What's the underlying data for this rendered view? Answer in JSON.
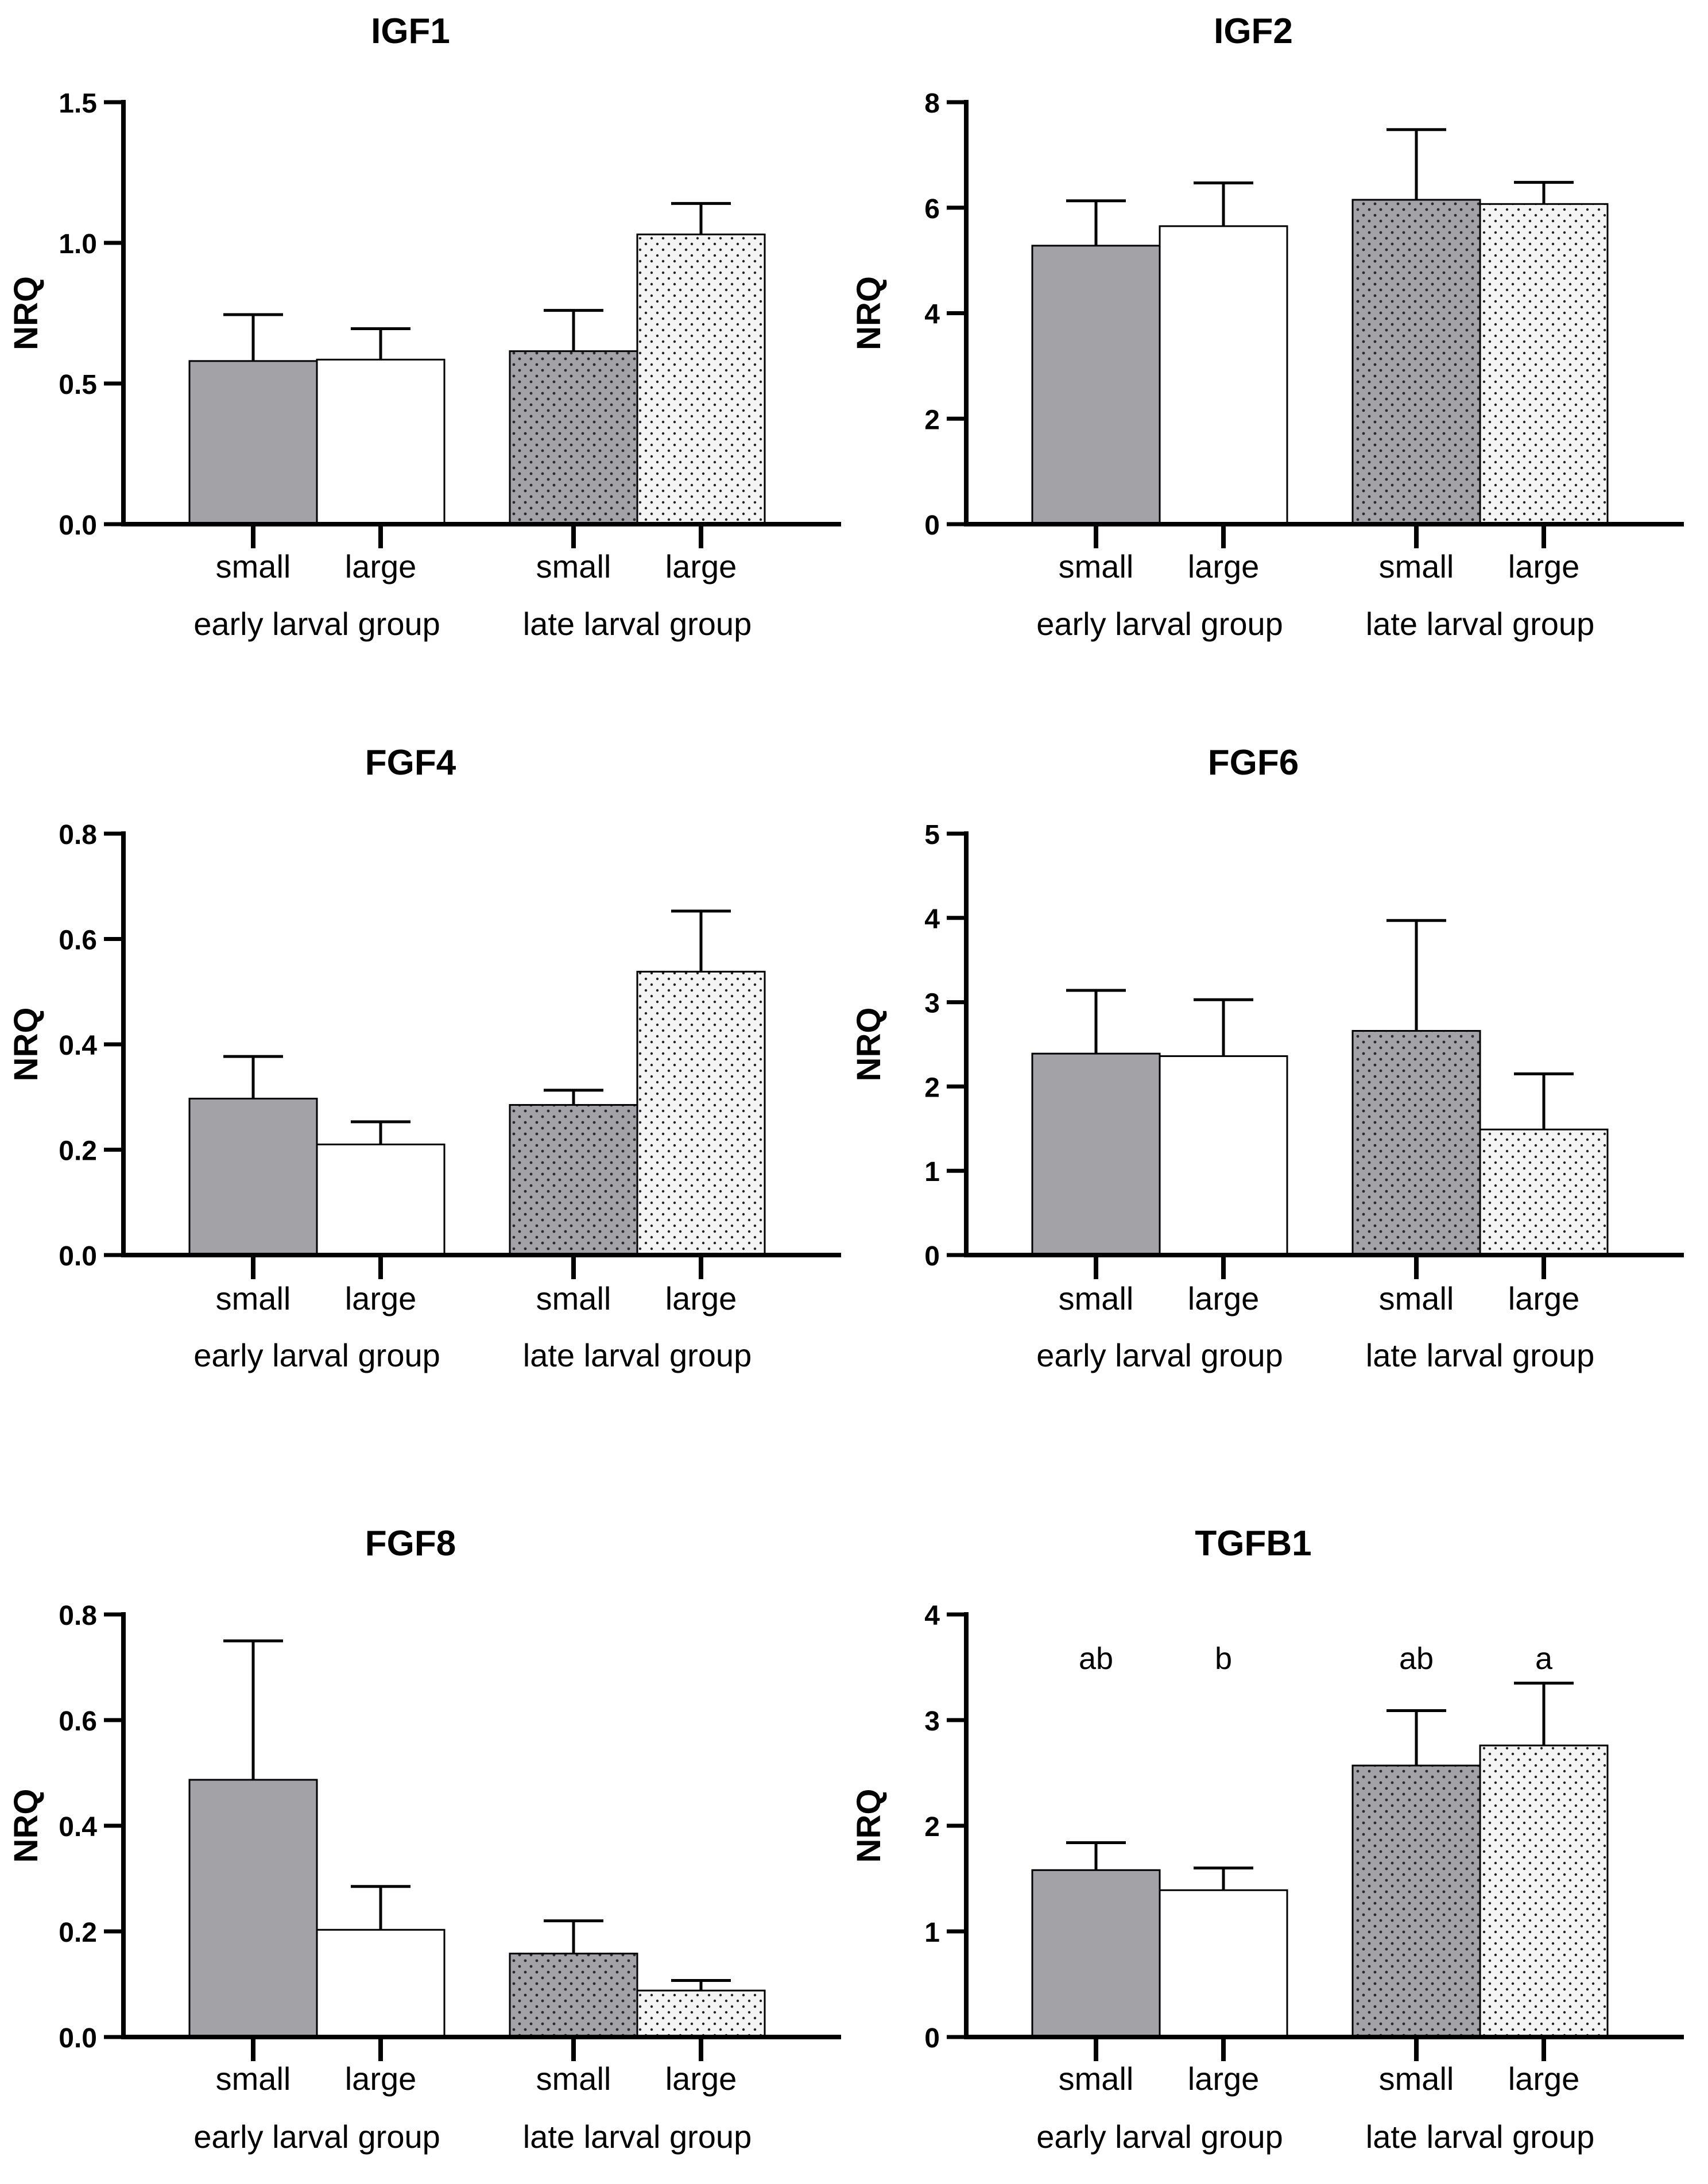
{
  "chart_data": [
    {
      "type": "bar",
      "title": "IGF1",
      "ylabel": "NRQ",
      "xlabel": "",
      "ylim": [
        0,
        1.5
      ],
      "yticks": [
        0,
        0.5,
        1.0,
        1.5
      ],
      "ytick_labels": [
        "0.0",
        "0.5",
        "1.0",
        "1.5"
      ],
      "groups": [
        "early larval group",
        "late larval group"
      ],
      "categories": [
        "small",
        "large",
        "small",
        "large"
      ],
      "values": [
        0.58,
        0.585,
        0.615,
        1.03
      ],
      "errors": [
        0.165,
        0.11,
        0.145,
        0.11
      ],
      "significance": []
    },
    {
      "type": "bar",
      "title": "IGF2",
      "ylabel": "NRQ",
      "xlabel": "",
      "ylim": [
        0,
        8
      ],
      "yticks": [
        0,
        2,
        4,
        6,
        8
      ],
      "ytick_labels": [
        "0",
        "2",
        "4",
        "6",
        "8"
      ],
      "groups": [
        "early larval group",
        "late larval group"
      ],
      "categories": [
        "small",
        "large",
        "small",
        "large"
      ],
      "values": [
        5.28,
        5.65,
        6.15,
        6.07
      ],
      "errors": [
        0.85,
        0.82,
        1.33,
        0.41
      ],
      "significance": []
    },
    {
      "type": "bar",
      "title": "FGF4",
      "ylabel": "NRQ",
      "xlabel": "",
      "ylim": [
        0,
        0.8
      ],
      "yticks": [
        0,
        0.2,
        0.4,
        0.6,
        0.8
      ],
      "ytick_labels": [
        "0.0",
        "0.2",
        "0.4",
        "0.6",
        "0.8"
      ],
      "groups": [
        "early larval group",
        "late larval group"
      ],
      "categories": [
        "small",
        "large",
        "small",
        "large"
      ],
      "values": [
        0.297,
        0.21,
        0.285,
        0.538
      ],
      "errors": [
        0.08,
        0.043,
        0.028,
        0.115
      ],
      "significance": []
    },
    {
      "type": "bar",
      "title": "FGF6",
      "ylabel": "NRQ",
      "xlabel": "",
      "ylim": [
        0,
        5
      ],
      "yticks": [
        0,
        1,
        2,
        3,
        4,
        5
      ],
      "ytick_labels": [
        "0",
        "1",
        "2",
        "3",
        "4",
        "5"
      ],
      "groups": [
        "early larval group",
        "late larval group"
      ],
      "categories": [
        "small",
        "large",
        "small",
        "large"
      ],
      "values": [
        2.39,
        2.36,
        2.66,
        1.49
      ],
      "errors": [
        0.75,
        0.67,
        1.31,
        0.66
      ],
      "significance": []
    },
    {
      "type": "bar",
      "title": "FGF8",
      "ylabel": "NRQ",
      "xlabel": "",
      "ylim": [
        0,
        0.8
      ],
      "yticks": [
        0,
        0.2,
        0.4,
        0.6,
        0.8
      ],
      "ytick_labels": [
        "0.0",
        "0.2",
        "0.4",
        "0.6",
        "0.8"
      ],
      "groups": [
        "early larval group",
        "late larval group"
      ],
      "categories": [
        "small",
        "large",
        "small",
        "large"
      ],
      "values": [
        0.487,
        0.203,
        0.158,
        0.088
      ],
      "errors": [
        0.263,
        0.082,
        0.062,
        0.019
      ],
      "significance": []
    },
    {
      "type": "bar",
      "title": "TGFB1",
      "ylabel": "NRQ",
      "xlabel": "",
      "ylim": [
        0,
        4
      ],
      "yticks": [
        0,
        1,
        2,
        3,
        4
      ],
      "ytick_labels": [
        "0",
        "1",
        "2",
        "3",
        "4"
      ],
      "groups": [
        "early larval group",
        "late larval group"
      ],
      "categories": [
        "small",
        "large",
        "small",
        "large"
      ],
      "values": [
        1.58,
        1.39,
        2.57,
        2.76
      ],
      "errors": [
        0.26,
        0.21,
        0.52,
        0.59
      ],
      "significance": [
        "ab",
        "b",
        "ab",
        "a"
      ]
    }
  ],
  "colors": {
    "small_early": "#a3a2a7",
    "large_early": "#ffffff",
    "small_late": "#a3a2a7",
    "large_late": "#f2f2f2",
    "dots": "#222222",
    "axis": "#000000"
  }
}
